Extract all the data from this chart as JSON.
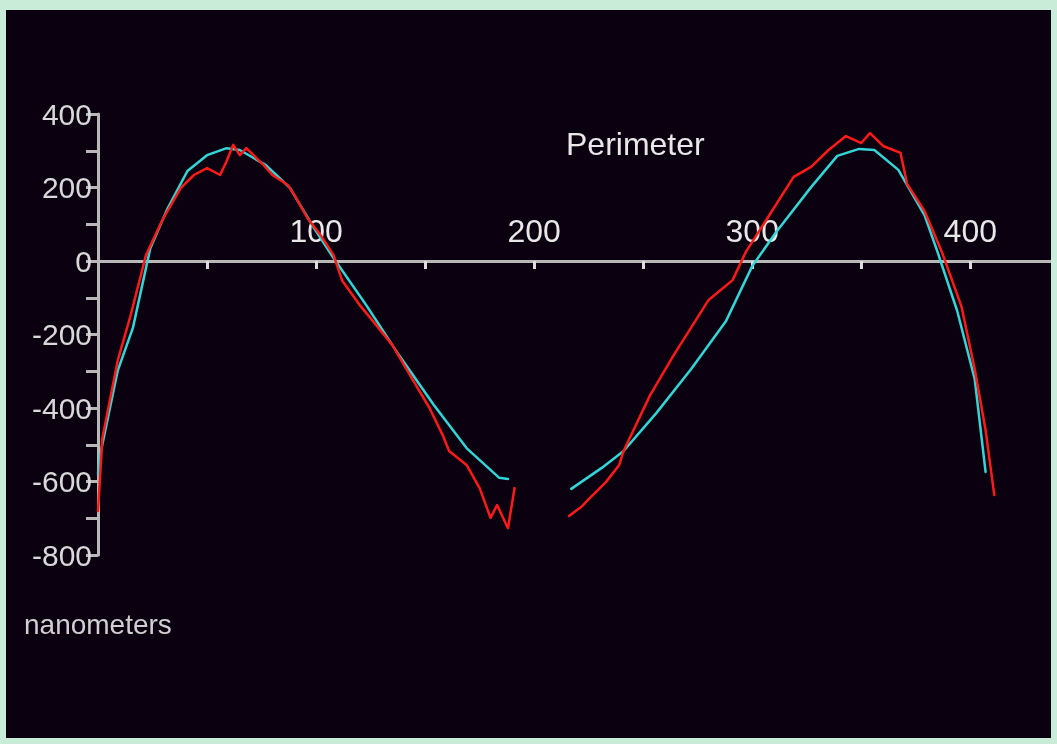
{
  "chart_data": {
    "type": "line",
    "xlabel": "Perimeter",
    "ylabel": "nanometers",
    "xlim": [
      0,
      437
    ],
    "ylim": [
      -800,
      400
    ],
    "xticks": [
      {
        "value": 50,
        "label": null
      },
      100,
      {
        "value": 150,
        "label": null
      },
      200,
      {
        "value": 250,
        "label": null
      },
      300,
      {
        "value": 350,
        "label": null
      },
      400
    ],
    "yticks": [
      -800,
      {
        "value": -700,
        "label": null
      },
      -600,
      {
        "value": -500,
        "label": null
      },
      -400,
      {
        "value": -300,
        "label": null
      },
      -200,
      {
        "value": -100,
        "label": null
      },
      0,
      {
        "value": 100,
        "label": null
      },
      200,
      {
        "value": 300,
        "label": null
      },
      400
    ],
    "grid": false,
    "marker": "none",
    "line_style": "solid",
    "series": [
      {
        "color": "#33d6d6",
        "x": [
          0,
          1,
          9,
          16,
          24,
          32,
          41,
          50,
          59,
          65,
          77,
          88,
          99,
          108,
          123,
          138,
          154,
          169,
          184,
          188,
          200,
          217,
          231,
          241,
          256,
          272,
          288,
          300,
          311,
          327,
          339,
          349,
          356,
          367,
          379,
          385,
          394,
          402,
          407
        ],
        "values": [
          -580,
          -528,
          -299,
          -182,
          35,
          144,
          245,
          288,
          307,
          302,
          261,
          199,
          90,
          8,
          -120,
          -256,
          -392,
          -509,
          -590,
          -593,
          null,
          -620,
          -563,
          -517,
          -414,
          -294,
          -163,
          -14,
          79,
          201,
          286,
          305,
          302,
          248,
          125,
          24,
          -136,
          -321,
          -574
        ]
      },
      {
        "color": "#ff1a1a",
        "x": [
          0,
          2,
          9,
          15,
          22,
          25,
          30,
          38,
          44,
          50,
          56,
          59,
          62,
          65,
          68,
          76,
          80,
          87,
          90,
          96,
          102,
          108,
          112,
          120,
          126,
          135,
          143,
          152,
          158,
          161,
          169,
          175,
          180,
          183,
          188,
          191,
          200,
          216,
          222,
          225,
          233,
          239,
          241,
          253,
          264,
          280,
          291,
          297,
          307,
          319,
          327,
          335,
          343,
          350,
          354,
          360,
          368,
          371,
          379,
          387,
          396,
          402,
          407,
          411
        ],
        "values": [
          -680,
          -482,
          -272,
          -147,
          16,
          54,
          117,
          199,
          234,
          253,
          234,
          272,
          316,
          288,
          307,
          261,
          234,
          207,
          180,
          117,
          71,
          16,
          -54,
          -120,
          -163,
          -229,
          -310,
          -400,
          -473,
          -517,
          -555,
          -618,
          -699,
          -664,
          -727,
          -618,
          null,
          -694,
          -667,
          -648,
          -601,
          -555,
          -517,
          -367,
          -256,
          -106,
          -52,
          24,
          117,
          229,
          256,
          302,
          340,
          321,
          348,
          313,
          294,
          210,
          136,
          24,
          -125,
          -294,
          -460,
          -637
        ]
      }
    ]
  }
}
